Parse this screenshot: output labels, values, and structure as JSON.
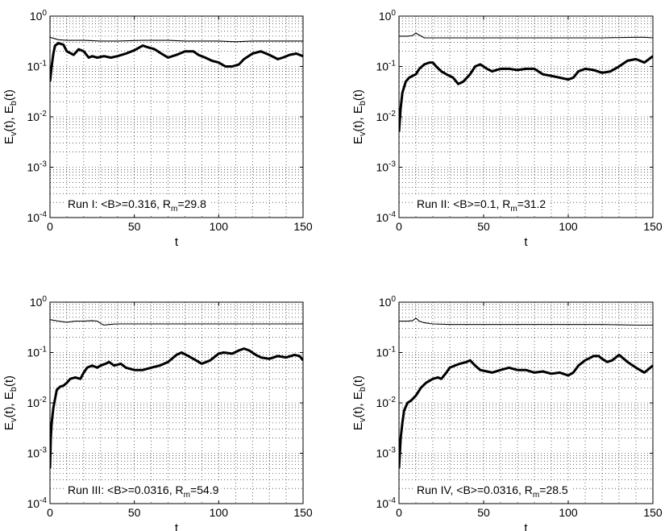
{
  "chart_data": [
    {
      "type": "line",
      "scale_y": "log",
      "xlim": [
        0,
        150
      ],
      "ylim": [
        0.0001,
        1
      ],
      "xlabel": "t",
      "ylabel": "E_v(t), E_b(t)",
      "xticks": [
        "0",
        "50",
        "100",
        "150"
      ],
      "yticks": [
        "10^-4",
        "10^-3",
        "10^-2",
        "10^-1",
        "10^0"
      ],
      "grid": true,
      "annotation": "Run I: <B>=0.316, R_m=29.8",
      "series": [
        {
          "style": "thin",
          "x": [
            0,
            5,
            10,
            20,
            30,
            40,
            55,
            60,
            70,
            80,
            90,
            100,
            110,
            120,
            130,
            140,
            150
          ],
          "values": [
            0.38,
            0.34,
            0.33,
            0.33,
            0.32,
            0.32,
            0.33,
            0.33,
            0.33,
            0.32,
            0.32,
            0.32,
            0.31,
            0.32,
            0.32,
            0.32,
            0.32
          ]
        },
        {
          "style": "thick",
          "x": [
            0,
            1,
            2,
            3,
            5,
            8,
            10,
            14,
            17,
            20,
            23,
            25,
            28,
            32,
            36,
            40,
            45,
            50,
            55,
            58,
            62,
            66,
            70,
            75,
            80,
            85,
            88,
            92,
            96,
            100,
            104,
            108,
            112,
            115,
            120,
            125,
            130,
            135,
            138,
            142,
            146,
            150
          ],
          "values": [
            0.05,
            0.1,
            0.18,
            0.26,
            0.29,
            0.27,
            0.2,
            0.17,
            0.22,
            0.2,
            0.15,
            0.16,
            0.15,
            0.16,
            0.15,
            0.16,
            0.18,
            0.21,
            0.26,
            0.24,
            0.22,
            0.18,
            0.15,
            0.17,
            0.2,
            0.2,
            0.17,
            0.15,
            0.13,
            0.12,
            0.1,
            0.1,
            0.11,
            0.14,
            0.18,
            0.2,
            0.17,
            0.14,
            0.15,
            0.17,
            0.18,
            0.16
          ]
        }
      ]
    },
    {
      "type": "line",
      "scale_y": "log",
      "xlim": [
        0,
        150
      ],
      "ylim": [
        0.0001,
        1
      ],
      "xlabel": "t",
      "ylabel": "E_v(t), E_b(t)",
      "xticks": [
        "0",
        "50",
        "100",
        "150"
      ],
      "yticks": [
        "10^-4",
        "10^-3",
        "10^-2",
        "10^-1",
        "10^0"
      ],
      "grid": true,
      "annotation": "Run II: <B>=0.1, R_m=31.2",
      "series": [
        {
          "style": "thin",
          "x": [
            0,
            5,
            8,
            10,
            12,
            15,
            20,
            30,
            40,
            60,
            80,
            100,
            120,
            140,
            145,
            150
          ],
          "values": [
            0.4,
            0.4,
            0.41,
            0.46,
            0.42,
            0.37,
            0.37,
            0.37,
            0.37,
            0.37,
            0.37,
            0.37,
            0.37,
            0.38,
            0.38,
            0.37
          ]
        },
        {
          "style": "thick",
          "x": [
            0,
            1,
            2,
            4,
            6,
            8,
            10,
            12,
            15,
            18,
            20,
            22,
            25,
            28,
            32,
            35,
            38,
            42,
            45,
            48,
            52,
            55,
            60,
            65,
            70,
            75,
            80,
            85,
            90,
            95,
            100,
            103,
            106,
            110,
            115,
            120,
            125,
            130,
            135,
            140,
            145,
            150
          ],
          "values": [
            0.005,
            0.015,
            0.03,
            0.05,
            0.06,
            0.065,
            0.07,
            0.09,
            0.11,
            0.12,
            0.12,
            0.1,
            0.08,
            0.07,
            0.06,
            0.045,
            0.05,
            0.07,
            0.1,
            0.11,
            0.09,
            0.08,
            0.09,
            0.09,
            0.085,
            0.09,
            0.09,
            0.07,
            0.065,
            0.06,
            0.055,
            0.06,
            0.08,
            0.09,
            0.085,
            0.075,
            0.08,
            0.1,
            0.13,
            0.14,
            0.12,
            0.16
          ]
        }
      ]
    },
    {
      "type": "line",
      "scale_y": "log",
      "xlim": [
        0,
        150
      ],
      "ylim": [
        0.0001,
        1
      ],
      "xlabel": "t",
      "ylabel": "E_v(t), E_b(t)",
      "xticks": [
        "0",
        "50",
        "100",
        "150"
      ],
      "yticks": [
        "10^-4",
        "10^-3",
        "10^-2",
        "10^-1",
        "10^0"
      ],
      "grid": true,
      "annotation": "Run III: <B>=0.0316, R_m=54.9",
      "series": [
        {
          "style": "thin",
          "x": [
            0,
            5,
            10,
            15,
            20,
            25,
            28,
            30,
            32,
            35,
            40,
            50,
            60,
            80,
            100,
            120,
            140,
            150
          ],
          "values": [
            0.45,
            0.42,
            0.4,
            0.42,
            0.42,
            0.43,
            0.42,
            0.38,
            0.35,
            0.36,
            0.37,
            0.37,
            0.37,
            0.37,
            0.37,
            0.37,
            0.37,
            0.37
          ]
        },
        {
          "style": "thick",
          "x": [
            0,
            0.5,
            1,
            2,
            3,
            4,
            6,
            8,
            10,
            12,
            15,
            18,
            20,
            22,
            25,
            28,
            30,
            33,
            35,
            38,
            42,
            45,
            50,
            55,
            60,
            65,
            70,
            75,
            78,
            82,
            85,
            90,
            95,
            100,
            103,
            108,
            112,
            115,
            118,
            122,
            125,
            130,
            135,
            140,
            145,
            148,
            150
          ],
          "values": [
            0.0005,
            0.002,
            0.004,
            0.008,
            0.012,
            0.018,
            0.021,
            0.022,
            0.025,
            0.03,
            0.032,
            0.03,
            0.04,
            0.05,
            0.055,
            0.05,
            0.055,
            0.06,
            0.065,
            0.055,
            0.06,
            0.05,
            0.045,
            0.045,
            0.05,
            0.055,
            0.065,
            0.09,
            0.1,
            0.085,
            0.075,
            0.06,
            0.07,
            0.095,
            0.1,
            0.095,
            0.11,
            0.12,
            0.11,
            0.09,
            0.08,
            0.075,
            0.085,
            0.08,
            0.09,
            0.085,
            0.07
          ]
        }
      ]
    },
    {
      "type": "line",
      "scale_y": "log",
      "xlim": [
        0,
        150
      ],
      "ylim": [
        0.0001,
        1
      ],
      "xlabel": "t",
      "ylabel": "E_v(t), E_b(t)",
      "xticks": [
        "0",
        "50",
        "100",
        "150"
      ],
      "yticks": [
        "10^-4",
        "10^-3",
        "10^-2",
        "10^-1",
        "10^0"
      ],
      "grid": true,
      "annotation": "Run IV, <B>=0.0316, R_m=28.5",
      "series": [
        {
          "style": "thin",
          "x": [
            0,
            5,
            8,
            10,
            12,
            15,
            20,
            30,
            40,
            60,
            80,
            100,
            120,
            140,
            150
          ],
          "values": [
            0.42,
            0.42,
            0.43,
            0.48,
            0.42,
            0.39,
            0.37,
            0.36,
            0.36,
            0.36,
            0.36,
            0.36,
            0.36,
            0.35,
            0.35
          ]
        },
        {
          "style": "thick",
          "x": [
            0,
            0.5,
            1,
            2,
            3,
            5,
            7,
            10,
            13,
            16,
            20,
            23,
            25,
            28,
            30,
            33,
            36,
            40,
            42,
            45,
            48,
            52,
            55,
            60,
            65,
            70,
            75,
            80,
            85,
            90,
            95,
            100,
            103,
            106,
            110,
            115,
            118,
            120,
            123,
            126,
            130,
            135,
            140,
            145,
            150
          ],
          "values": [
            0.0005,
            0.001,
            0.002,
            0.004,
            0.007,
            0.01,
            0.011,
            0.014,
            0.02,
            0.025,
            0.03,
            0.032,
            0.03,
            0.04,
            0.05,
            0.055,
            0.06,
            0.065,
            0.07,
            0.055,
            0.045,
            0.042,
            0.04,
            0.045,
            0.05,
            0.045,
            0.045,
            0.04,
            0.042,
            0.038,
            0.04,
            0.035,
            0.04,
            0.055,
            0.07,
            0.085,
            0.085,
            0.075,
            0.065,
            0.07,
            0.09,
            0.065,
            0.05,
            0.04,
            0.055
          ]
        }
      ]
    }
  ]
}
